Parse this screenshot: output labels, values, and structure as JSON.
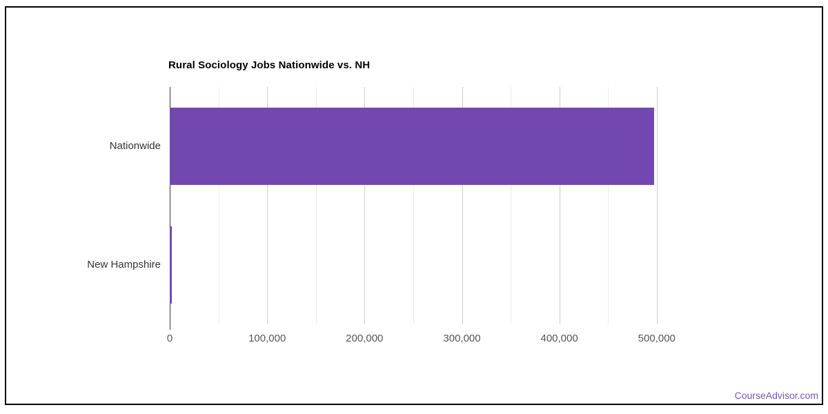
{
  "page": {
    "watermark": "CourseAdvisor.com",
    "watermark_color": "#7a54c0",
    "background_color": "#ffffff",
    "frame_border_color": "#000000"
  },
  "chart_data": {
    "type": "bar",
    "orientation": "horizontal",
    "title": "Rural Sociology Jobs Nationwide vs. NH",
    "categories": [
      "Nationwide",
      "New Hampshire"
    ],
    "values": [
      497000,
      2100
    ],
    "xlabel": "",
    "ylabel": "",
    "xlim": [
      0,
      520000
    ],
    "x_tick_max": 500000,
    "x_tick_label_interval": 100000,
    "x_tick_minor_interval": 50000,
    "x_tick_labels": [
      "0",
      "100,000",
      "200,000",
      "300,000",
      "400,000",
      "500,000"
    ],
    "bar_color": "#7248b0",
    "gridline_major_color": "#cccccc",
    "gridline_minor_color": "#ebebeb",
    "axis_line_color": "#333333",
    "grid": true,
    "legend": "none"
  }
}
